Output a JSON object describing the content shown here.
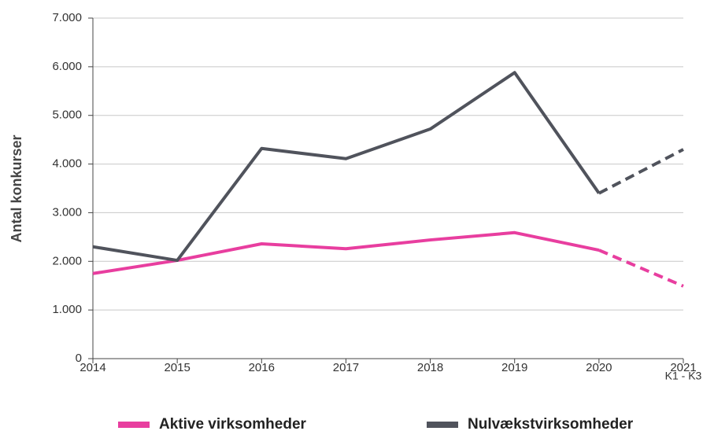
{
  "chart_data": {
    "type": "line",
    "y_label": "Antal konkurser",
    "annotation": "K1 - K3",
    "x": [
      2014,
      2015,
      2016,
      2017,
      2018,
      2019,
      2020,
      2021
    ],
    "xlim": [
      2014,
      2021
    ],
    "xticks": [
      2014,
      2015,
      2016,
      2017,
      2018,
      2019,
      2020,
      2021
    ],
    "ylim": [
      0,
      7000
    ],
    "yticks": [
      0,
      {
        "value": 1000,
        "label": "1.000"
      },
      {
        "value": 2000,
        "label": "2.000"
      },
      {
        "value": 3000,
        "label": "3.000"
      },
      {
        "value": 4000,
        "label": "4.000"
      },
      {
        "value": 5000,
        "label": "5.000"
      },
      {
        "value": 6000,
        "label": "6.000"
      },
      {
        "value": 7000,
        "label": "7.000"
      }
    ],
    "grid": true,
    "dashed_from": 2020,
    "legend": "bottom",
    "series": [
      {
        "name": "Aktive virksomheder",
        "color": "#e83e9f",
        "values": [
          1750,
          2020,
          2360,
          2260,
          2440,
          2590,
          2230,
          1490
        ]
      },
      {
        "name": "Nulvækstvirksomheder",
        "color": "#50535c",
        "values": [
          2300,
          2020,
          4320,
          4110,
          4720,
          5880,
          3400,
          4300
        ]
      }
    ]
  }
}
